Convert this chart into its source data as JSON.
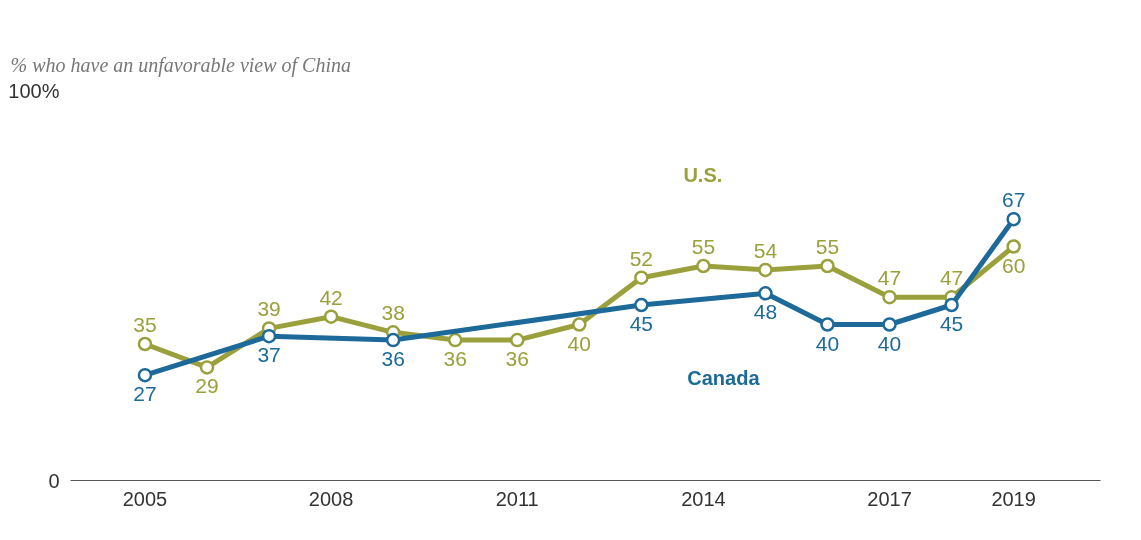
{
  "chart_data": {
    "type": "line",
    "title": "% who have an unfavorable view of China",
    "x": [
      2005,
      2006,
      2007,
      2008,
      2009,
      2010,
      2011,
      2012,
      2013,
      2014,
      2015,
      2016,
      2017,
      2018,
      2019
    ],
    "series": [
      {
        "name": "U.S.",
        "color": "#9aa03c",
        "values": [
          35,
          29,
          39,
          42,
          38,
          36,
          36,
          40,
          52,
          55,
          54,
          55,
          47,
          47,
          60
        ]
      },
      {
        "name": "Canada",
        "color": "#1d6a9a",
        "x": [
          2005,
          2007,
          2009,
          2013,
          2015,
          2016,
          2017,
          2018,
          2019
        ],
        "values": [
          27,
          37,
          36,
          45,
          48,
          40,
          40,
          45,
          67
        ]
      }
    ],
    "xlim": [
      2003.8,
      2020.4
    ],
    "xticks": [
      2005,
      2008,
      2011,
      2014,
      2017,
      2019
    ],
    "ylim": [
      0,
      100
    ],
    "yticks": [
      0,
      {
        "value": 100,
        "label": "100%"
      }
    ],
    "data_labels": true,
    "grid": false,
    "marker": "circle",
    "line_style": "solid"
  }
}
